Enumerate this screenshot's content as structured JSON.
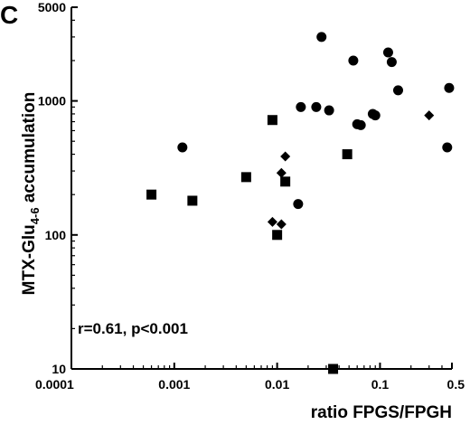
{
  "panel_label": "C",
  "chart_data": {
    "type": "scatter",
    "title": "",
    "xlabel": "ratio FPGS/FPGH",
    "ylabel_main": "MTX-Glu",
    "ylabel_subscript": "4-6",
    "ylabel_suffix": " accumulation",
    "x_scale": "log",
    "y_scale": "log",
    "xlim": [
      0.0001,
      0.5
    ],
    "ylim": [
      10,
      5000
    ],
    "x_ticks": [
      0.0001,
      0.001,
      0.01,
      0.1,
      0.5
    ],
    "x_tick_labels": [
      "0.0001",
      "0.001",
      "0.01",
      "0.1",
      "0.5"
    ],
    "y_ticks": [
      10,
      100,
      1000,
      5000
    ],
    "y_tick_labels": [
      "10",
      "100",
      "1000",
      "5000"
    ],
    "grid": false,
    "annotation": "r=0.61, p<0.001",
    "series": [
      {
        "marker": "circle",
        "points": [
          [
            0.0012,
            450
          ],
          [
            0.017,
            900
          ],
          [
            0.024,
            900
          ],
          [
            0.027,
            3000
          ],
          [
            0.032,
            850
          ],
          [
            0.055,
            2000
          ],
          [
            0.06,
            670
          ],
          [
            0.065,
            660
          ],
          [
            0.085,
            800
          ],
          [
            0.09,
            780
          ],
          [
            0.12,
            2300
          ],
          [
            0.13,
            1950
          ],
          [
            0.15,
            1200
          ],
          [
            0.45,
            450
          ],
          [
            0.47,
            1250
          ],
          [
            0.016,
            170
          ]
        ]
      },
      {
        "marker": "square",
        "points": [
          [
            0.0006,
            200
          ],
          [
            0.0015,
            180
          ],
          [
            0.005,
            270
          ],
          [
            0.009,
            720
          ],
          [
            0.01,
            100
          ],
          [
            0.012,
            250
          ],
          [
            0.048,
            400
          ],
          [
            0.035,
            10
          ]
        ]
      },
      {
        "marker": "diamond",
        "points": [
          [
            0.009,
            125
          ],
          [
            0.011,
            120
          ],
          [
            0.011,
            290
          ],
          [
            0.012,
            385
          ],
          [
            0.3,
            780
          ]
        ]
      }
    ]
  }
}
